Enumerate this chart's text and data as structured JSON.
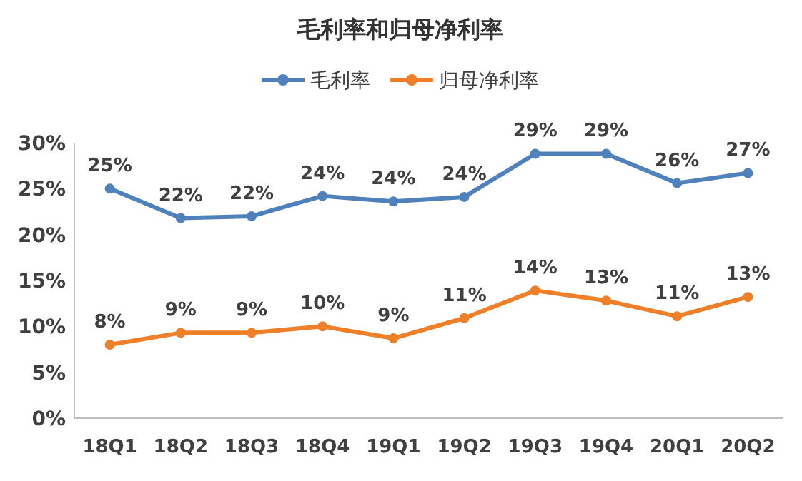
{
  "chart_data": {
    "type": "line",
    "title": "毛利率和归母净利率",
    "categories": [
      "18Q1",
      "18Q2",
      "18Q3",
      "18Q4",
      "19Q1",
      "19Q2",
      "19Q3",
      "19Q4",
      "20Q1",
      "20Q2"
    ],
    "series": [
      {
        "name": "毛利率",
        "color": "#4f81bd",
        "values": [
          25,
          21.8,
          22,
          24.2,
          23.6,
          24.1,
          28.8,
          28.8,
          25.6,
          26.7
        ],
        "value_labels": [
          "25%",
          "22%",
          "22%",
          "24%",
          "24%",
          "24%",
          "29%",
          "29%",
          "26%",
          "27%"
        ]
      },
      {
        "name": "归母净利率",
        "color": "#f07f2a",
        "values": [
          8,
          9.3,
          9.3,
          10,
          8.7,
          10.9,
          13.9,
          12.8,
          11.1,
          13.2
        ],
        "value_labels": [
          "8%",
          "9%",
          "9%",
          "10%",
          "9%",
          "11%",
          "14%",
          "13%",
          "11%",
          "13%"
        ]
      }
    ],
    "ylim": [
      0,
      30
    ],
    "yticks": [
      {
        "value": 0,
        "label": "0%"
      },
      {
        "value": 5,
        "label": "5%"
      },
      {
        "value": 10,
        "label": "10%"
      },
      {
        "value": 15,
        "label": "15%"
      },
      {
        "value": 20,
        "label": "20%"
      },
      {
        "value": 25,
        "label": "25%"
      },
      {
        "value": 30,
        "label": "30%"
      }
    ],
    "grid": false,
    "legend": "top",
    "marker": "circle",
    "line_style": "solid"
  }
}
